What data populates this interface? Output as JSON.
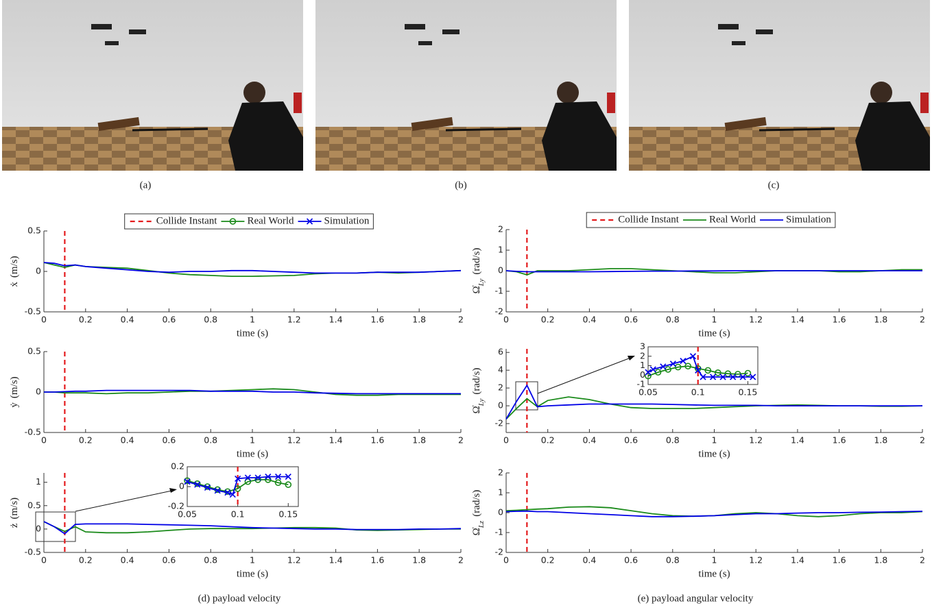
{
  "figure": {
    "photo_labels": [
      "(a)",
      "(b)",
      "(c)"
    ],
    "captions": [
      "(d) payload velocity",
      "(e) payload angular velocity"
    ]
  },
  "chart_data": [
    {
      "type": "line",
      "xlabel": "time (s)",
      "ylabel": [
        "ẋ",
        "(m/s)"
      ],
      "legend": "top",
      "xlim": [
        0,
        2
      ],
      "ylim": [
        -0.5,
        0.5
      ],
      "xticks": [
        0,
        0.2,
        0.4,
        0.6,
        0.8,
        1,
        1.2,
        1.4,
        1.6,
        1.8,
        2
      ],
      "yticks": [
        -0.5,
        0,
        0.5
      ],
      "x": [
        0,
        0.05,
        0.1,
        0.15,
        0.2,
        0.3,
        0.4,
        0.5,
        0.6,
        0.7,
        0.8,
        0.9,
        1.0,
        1.1,
        1.2,
        1.3,
        1.4,
        1.5,
        1.6,
        1.7,
        1.8,
        1.9,
        2.0
      ],
      "series": [
        {
          "name": "Collide Instant",
          "color": "#e41a1c",
          "vline": true,
          "x": 0.1
        },
        {
          "name": "Real World",
          "color": "#1a8a1a",
          "marker": "o",
          "values": [
            0.11,
            0.08,
            0.05,
            0.08,
            0.06,
            0.05,
            0.04,
            0.01,
            -0.02,
            -0.04,
            -0.05,
            -0.06,
            -0.06,
            -0.055,
            -0.05,
            -0.03,
            -0.02,
            -0.02,
            -0.01,
            -0.02,
            -0.01,
            0,
            0.01
          ]
        },
        {
          "name": "Simulation",
          "color": "#0000e6",
          "marker": "x",
          "values": [
            0.11,
            0.1,
            0.07,
            0.08,
            0.06,
            0.04,
            0.02,
            0,
            -0.01,
            0,
            0,
            0.01,
            0.01,
            0,
            -0.01,
            -0.02,
            -0.02,
            -0.02,
            -0.01,
            -0.01,
            -0.01,
            0,
            0.01
          ]
        }
      ]
    },
    {
      "type": "line",
      "xlabel": "time (s)",
      "ylabel": [
        "ẏ",
        "(m/s)"
      ],
      "xlim": [
        0,
        2
      ],
      "ylim": [
        -0.5,
        0.5
      ],
      "xticks": [
        0,
        0.2,
        0.4,
        0.6,
        0.8,
        1,
        1.2,
        1.4,
        1.6,
        1.8,
        2
      ],
      "yticks": [
        -0.5,
        0,
        0.5
      ],
      "x": [
        0,
        0.05,
        0.1,
        0.15,
        0.2,
        0.3,
        0.4,
        0.5,
        0.6,
        0.7,
        0.8,
        0.9,
        1.0,
        1.1,
        1.2,
        1.3,
        1.4,
        1.5,
        1.6,
        1.7,
        1.8,
        1.9,
        2.0
      ],
      "series": [
        {
          "color": "#e41a1c",
          "vline": true,
          "x": 0.1
        },
        {
          "color": "#1a8a1a",
          "values": [
            0,
            0,
            -0.01,
            -0.01,
            -0.01,
            -0.02,
            -0.01,
            -0.01,
            0,
            0.01,
            0.01,
            0.02,
            0.03,
            0.04,
            0.03,
            0,
            -0.03,
            -0.04,
            -0.04,
            -0.03,
            -0.03,
            -0.03,
            -0.03
          ]
        },
        {
          "color": "#0000e6",
          "values": [
            0,
            0,
            0.005,
            0.01,
            0.01,
            0.02,
            0.02,
            0.02,
            0.02,
            0.02,
            0.01,
            0.01,
            0.01,
            0,
            0,
            -0.01,
            -0.015,
            -0.02,
            -0.02,
            -0.02,
            -0.02,
            -0.02,
            -0.02
          ]
        }
      ]
    },
    {
      "type": "line",
      "xlabel": "time (s)",
      "ylabel": [
        "ż",
        "(m/s)"
      ],
      "xlim": [
        0,
        2
      ],
      "ylim": [
        -0.5,
        1.2
      ],
      "xticks": [
        0,
        0.2,
        0.4,
        0.6,
        0.8,
        1,
        1.2,
        1.4,
        1.6,
        1.8,
        2
      ],
      "yticks": [
        -0.5,
        0,
        0.5,
        1
      ],
      "x": [
        0,
        0.05,
        0.1,
        0.15,
        0.2,
        0.3,
        0.4,
        0.5,
        0.6,
        0.7,
        0.8,
        0.9,
        1.0,
        1.1,
        1.2,
        1.3,
        1.4,
        1.5,
        1.6,
        1.7,
        1.8,
        1.9,
        2.0
      ],
      "series": [
        {
          "color": "#e41a1c",
          "vline": true,
          "x": 0.1
        },
        {
          "color": "#1a8a1a",
          "values": [
            0.16,
            0.05,
            -0.05,
            0.05,
            -0.06,
            -0.08,
            -0.08,
            -0.06,
            -0.03,
            0,
            0.01,
            0.01,
            0.01,
            0.02,
            0.03,
            0.03,
            0.02,
            -0.02,
            -0.03,
            -0.02,
            -0.01,
            0,
            0
          ]
        },
        {
          "color": "#0000e6",
          "values": [
            0.16,
            0.05,
            -0.1,
            0.1,
            0.11,
            0.11,
            0.11,
            0.1,
            0.09,
            0.08,
            0.07,
            0.05,
            0.03,
            0.02,
            0.01,
            0,
            0,
            -0.01,
            -0.01,
            -0.01,
            0,
            0,
            0.01
          ]
        }
      ]
    },
    {
      "type": "line",
      "xlabel": "time (s)",
      "ylabel": [
        "Ω̇",
        "Ly",
        "(rad/s)"
      ],
      "legend": "top",
      "xlim": [
        0,
        2
      ],
      "ylim": [
        -2,
        2
      ],
      "xticks": [
        0,
        0.2,
        0.4,
        0.6,
        0.8,
        1,
        1.2,
        1.4,
        1.6,
        1.8,
        2
      ],
      "yticks": [
        -2,
        -1,
        0,
        1,
        2
      ],
      "x": [
        0,
        0.05,
        0.1,
        0.15,
        0.2,
        0.3,
        0.4,
        0.5,
        0.6,
        0.7,
        0.8,
        0.9,
        1.0,
        1.1,
        1.2,
        1.3,
        1.4,
        1.5,
        1.6,
        1.7,
        1.8,
        1.9,
        2.0
      ],
      "series": [
        {
          "name": "Collide Instant",
          "color": "#e41a1c",
          "vline": true,
          "x": 0.1
        },
        {
          "name": "Real World",
          "color": "#1a8a1a",
          "values": [
            0,
            -0.05,
            -0.2,
            0,
            0,
            0,
            0.05,
            0.1,
            0.1,
            0.05,
            0,
            -0.05,
            -0.1,
            -0.1,
            -0.05,
            0,
            0,
            0,
            -0.05,
            -0.05,
            0,
            0.05,
            0.05
          ]
        },
        {
          "name": "Simulation",
          "color": "#0000e6",
          "values": [
            0,
            -0.03,
            -0.05,
            -0.05,
            -0.05,
            -0.05,
            -0.05,
            -0.04,
            -0.03,
            -0.02,
            -0.02,
            -0.01,
            -0.01,
            0,
            0,
            0,
            0,
            0,
            0,
            0,
            0,
            0,
            0
          ]
        }
      ]
    },
    {
      "type": "line",
      "xlabel": "time (s)",
      "ylabel": [
        "Ω̇",
        "Ly",
        "(rad/s)"
      ],
      "xlim": [
        0,
        2
      ],
      "ylim": [
        -3,
        6.4
      ],
      "xticks": [
        0,
        0.2,
        0.4,
        0.6,
        0.8,
        1,
        1.2,
        1.4,
        1.6,
        1.8,
        2
      ],
      "yticks": [
        -2,
        0,
        2,
        4,
        6
      ],
      "x": [
        0,
        0.05,
        0.1,
        0.15,
        0.2,
        0.3,
        0.4,
        0.5,
        0.6,
        0.7,
        0.8,
        0.9,
        1.0,
        1.1,
        1.2,
        1.3,
        1.4,
        1.5,
        1.6,
        1.7,
        1.8,
        1.9,
        2.0
      ],
      "series": [
        {
          "color": "#e41a1c",
          "vline": true,
          "x": 0.1
        },
        {
          "color": "#1a8a1a",
          "values": [
            -1.5,
            -0.3,
            0.8,
            -0.1,
            0.6,
            1.0,
            0.7,
            0.2,
            -0.2,
            -0.3,
            -0.3,
            -0.3,
            -0.2,
            -0.1,
            0,
            0.05,
            0.1,
            0.05,
            0,
            0,
            -0.05,
            -0.05,
            0
          ]
        },
        {
          "color": "#0000e6",
          "values": [
            -1.5,
            0.5,
            2.3,
            -0.1,
            0,
            0.1,
            0.2,
            0.2,
            0.2,
            0.2,
            0.15,
            0.1,
            0.05,
            0.05,
            0.05,
            0,
            0,
            0,
            0,
            0,
            0,
            0,
            0
          ]
        }
      ]
    },
    {
      "type": "line",
      "xlabel": "time (s)",
      "ylabel": [
        "Ω̇",
        "Lz",
        "(rad/s)"
      ],
      "xlim": [
        0,
        2
      ],
      "ylim": [
        -2,
        2
      ],
      "xticks": [
        0,
        0.2,
        0.4,
        0.6,
        0.8,
        1,
        1.2,
        1.4,
        1.6,
        1.8,
        2
      ],
      "yticks": [
        -2,
        -1,
        0,
        1,
        2
      ],
      "x": [
        0,
        0.05,
        0.1,
        0.15,
        0.2,
        0.3,
        0.4,
        0.5,
        0.6,
        0.7,
        0.8,
        0.9,
        1.0,
        1.1,
        1.2,
        1.3,
        1.4,
        1.5,
        1.6,
        1.7,
        1.8,
        1.9,
        2.0
      ],
      "series": [
        {
          "color": "#e41a1c",
          "vline": true,
          "x": 0.1
        },
        {
          "color": "#1a8a1a",
          "values": [
            0.1,
            0.12,
            0.15,
            0.18,
            0.2,
            0.28,
            0.3,
            0.25,
            0.1,
            -0.05,
            -0.15,
            -0.18,
            -0.15,
            -0.05,
            0,
            -0.05,
            -0.15,
            -0.2,
            -0.15,
            -0.05,
            0,
            0,
            0.05
          ]
        },
        {
          "color": "#0000e6",
          "values": [
            0.05,
            0.07,
            0.08,
            0.05,
            0.05,
            0,
            -0.05,
            -0.1,
            -0.15,
            -0.2,
            -0.2,
            -0.18,
            -0.15,
            -0.1,
            -0.05,
            -0.05,
            -0.02,
            0,
            0,
            0.02,
            0.03,
            0.05,
            0.07
          ]
        }
      ]
    },
    {
      "type": "line",
      "box": true,
      "markers": true,
      "xlim": [
        0.05,
        0.16
      ],
      "ylim": [
        -0.2,
        0.2
      ],
      "xticks": [
        0.05,
        0.1,
        0.15
      ],
      "yticks": [
        -0.2,
        0,
        0.2
      ],
      "series": [
        {
          "color": "#e41a1c",
          "vline": true,
          "x": 0.1
        },
        {
          "color": "#1a8a1a",
          "marker": "o",
          "x": [
            0.05,
            0.06,
            0.07,
            0.08,
            0.09,
            0.1,
            0.11,
            0.12,
            0.13,
            0.14,
            0.15
          ],
          "values": [
            0.06,
            0.03,
            0,
            -0.03,
            -0.05,
            -0.02,
            0.05,
            0.07,
            0.07,
            0.04,
            0.02
          ]
        },
        {
          "color": "#0000e6",
          "marker": "x",
          "x": [
            0.05,
            0.06,
            0.07,
            0.08,
            0.09,
            0.095,
            0.1,
            0.11,
            0.12,
            0.13,
            0.14,
            0.15
          ],
          "values": [
            0.05,
            0.02,
            -0.01,
            -0.04,
            -0.06,
            -0.08,
            0.08,
            0.09,
            0.09,
            0.1,
            0.1,
            0.1
          ]
        }
      ]
    },
    {
      "type": "line",
      "box": true,
      "markers": true,
      "xlim": [
        0.05,
        0.16
      ],
      "ylim": [
        -1,
        3
      ],
      "xticks": [
        0.05,
        0.1,
        0.15
      ],
      "yticks": [
        -1,
        0,
        1,
        2,
        3
      ],
      "series": [
        {
          "color": "#e41a1c",
          "vline": true,
          "x": 0.1
        },
        {
          "color": "#1a8a1a",
          "marker": "o",
          "x": [
            0.05,
            0.06,
            0.07,
            0.08,
            0.09,
            0.1,
            0.11,
            0.12,
            0.13,
            0.14,
            0.15
          ],
          "values": [
            -0.1,
            0.3,
            0.6,
            0.85,
            0.95,
            0.7,
            0.5,
            0.25,
            0.15,
            0.1,
            0.2
          ]
        },
        {
          "color": "#0000e6",
          "marker": "x",
          "x": [
            0.05,
            0.055,
            0.065,
            0.075,
            0.085,
            0.095,
            0.1,
            0.105,
            0.115,
            0.125,
            0.135,
            0.145,
            0.155
          ],
          "values": [
            0.3,
            0.6,
            0.9,
            1.2,
            1.5,
            2.0,
            0.5,
            -0.2,
            -0.2,
            -0.2,
            -0.2,
            -0.2,
            -0.2
          ]
        }
      ]
    }
  ]
}
